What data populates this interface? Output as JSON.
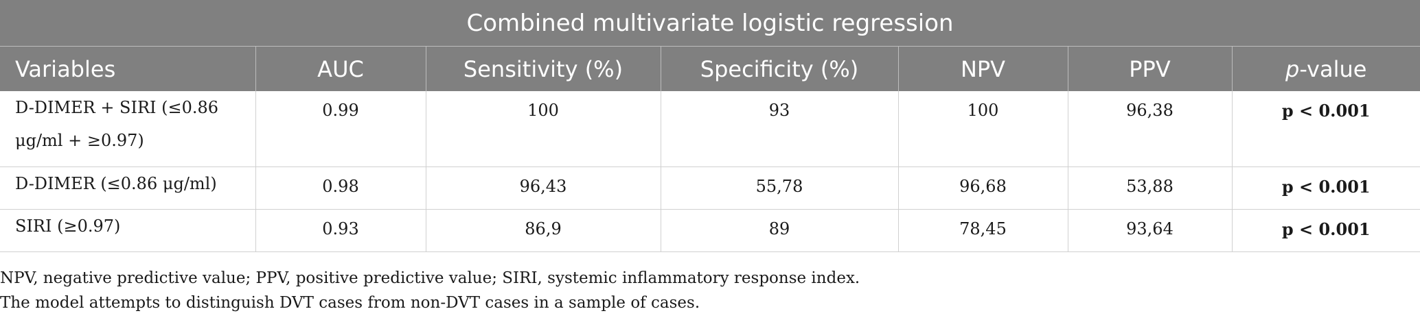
{
  "table": {
    "title": "Combined multivariate logistic regression",
    "headers": {
      "variables": "Variables",
      "auc": "AUC",
      "sensitivity": "Sensitivity (%)",
      "specificity": "Specificity (%)",
      "npv": "NPV",
      "ppv": "PPV",
      "p_italic": "p",
      "p_rest": "-value"
    },
    "rows": [
      {
        "variable": "D-DIMER + SIRI (≤0.86 μg/ml + ≥0.97)",
        "auc": "0.99",
        "sensitivity": "100",
        "specificity": "93",
        "npv": "100",
        "ppv": "96,38",
        "p_value": "p < 0.001"
      },
      {
        "variable": "D-DIMER (≤0.86 μg/ml)",
        "auc": "0.98",
        "sensitivity": "96,43",
        "specificity": "55,78",
        "npv": "96,68",
        "ppv": "53,88",
        "p_value": "p < 0.001"
      },
      {
        "variable": "SIRI (≥0.97)",
        "auc": "0.93",
        "sensitivity": "86,9",
        "specificity": "89",
        "npv": "78,45",
        "ppv": "93,64",
        "p_value": "p < 0.001"
      }
    ]
  },
  "notes": [
    "NPV, negative predictive value; PPV, positive predictive value; SIRI, systemic inflammatory response index.",
    "The model attempts to distinguish DVT cases from non-DVT cases in a sample of cases."
  ]
}
